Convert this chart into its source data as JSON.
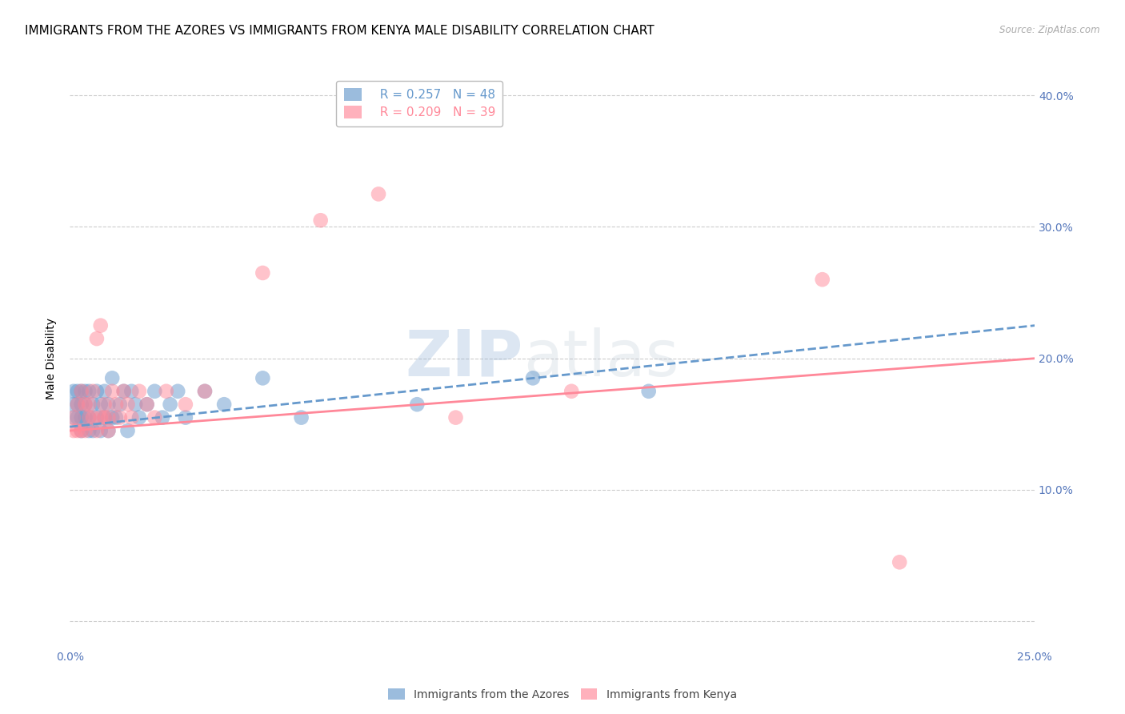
{
  "title": "IMMIGRANTS FROM THE AZORES VS IMMIGRANTS FROM KENYA MALE DISABILITY CORRELATION CHART",
  "source": "Source: ZipAtlas.com",
  "ylabel": "Male Disability",
  "watermark_zip": "ZIP",
  "watermark_atlas": "atlas",
  "xlim": [
    0.0,
    0.25
  ],
  "ylim": [
    -0.02,
    0.42
  ],
  "xticks": [
    0.0,
    0.05,
    0.1,
    0.15,
    0.2,
    0.25
  ],
  "yticks": [
    0.0,
    0.1,
    0.2,
    0.3,
    0.4
  ],
  "xtick_labels": [
    "0.0%",
    "",
    "",
    "",
    "",
    "25.0%"
  ],
  "ytick_labels": [
    "",
    "10.0%",
    "20.0%",
    "30.0%",
    "40.0%"
  ],
  "color_azores": "#6699CC",
  "color_kenya": "#FF8899",
  "legend_r_azores": "R = 0.257",
  "legend_n_azores": "N = 48",
  "legend_r_kenya": "R = 0.209",
  "legend_n_kenya": "N = 39",
  "azores_x": [
    0.001,
    0.001,
    0.001,
    0.002,
    0.002,
    0.002,
    0.003,
    0.003,
    0.003,
    0.003,
    0.004,
    0.004,
    0.004,
    0.005,
    0.005,
    0.005,
    0.006,
    0.006,
    0.007,
    0.007,
    0.008,
    0.008,
    0.009,
    0.009,
    0.01,
    0.01,
    0.011,
    0.011,
    0.012,
    0.013,
    0.014,
    0.015,
    0.016,
    0.017,
    0.018,
    0.02,
    0.022,
    0.024,
    0.026,
    0.028,
    0.03,
    0.035,
    0.04,
    0.05,
    0.06,
    0.09,
    0.12,
    0.15
  ],
  "azores_y": [
    0.155,
    0.165,
    0.175,
    0.155,
    0.165,
    0.175,
    0.145,
    0.155,
    0.165,
    0.175,
    0.155,
    0.165,
    0.175,
    0.145,
    0.155,
    0.175,
    0.145,
    0.165,
    0.155,
    0.175,
    0.145,
    0.165,
    0.155,
    0.175,
    0.145,
    0.165,
    0.155,
    0.185,
    0.155,
    0.165,
    0.175,
    0.145,
    0.175,
    0.165,
    0.155,
    0.165,
    0.175,
    0.155,
    0.165,
    0.175,
    0.155,
    0.175,
    0.165,
    0.185,
    0.155,
    0.165,
    0.185,
    0.175
  ],
  "kenya_x": [
    0.001,
    0.001,
    0.002,
    0.002,
    0.003,
    0.003,
    0.004,
    0.004,
    0.005,
    0.005,
    0.006,
    0.006,
    0.007,
    0.007,
    0.008,
    0.008,
    0.009,
    0.009,
    0.01,
    0.01,
    0.011,
    0.012,
    0.013,
    0.014,
    0.015,
    0.016,
    0.018,
    0.02,
    0.022,
    0.025,
    0.03,
    0.035,
    0.05,
    0.065,
    0.08,
    0.1,
    0.13,
    0.195,
    0.215
  ],
  "kenya_y": [
    0.145,
    0.155,
    0.145,
    0.165,
    0.145,
    0.175,
    0.145,
    0.165,
    0.155,
    0.165,
    0.155,
    0.175,
    0.145,
    0.215,
    0.155,
    0.225,
    0.155,
    0.165,
    0.145,
    0.155,
    0.175,
    0.165,
    0.155,
    0.175,
    0.165,
    0.155,
    0.175,
    0.165,
    0.155,
    0.175,
    0.165,
    0.175,
    0.265,
    0.305,
    0.325,
    0.155,
    0.175,
    0.26,
    0.045
  ],
  "azores_trend_x": [
    0.0,
    0.25
  ],
  "azores_trend_y": [
    0.148,
    0.225
  ],
  "kenya_trend_x": [
    0.0,
    0.25
  ],
  "kenya_trend_y": [
    0.145,
    0.2
  ],
  "background_color": "#FFFFFF",
  "grid_color": "#CCCCCC",
  "axis_label_color": "#5577BB",
  "title_fontsize": 11,
  "axis_fontsize": 10
}
